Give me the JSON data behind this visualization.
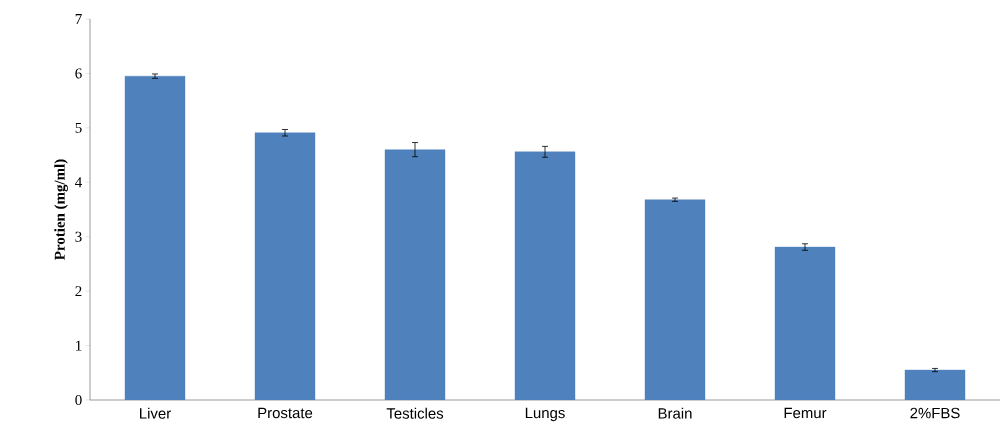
{
  "chart_data": {
    "type": "bar",
    "ylabel": "Protien (mg/ml)",
    "categories": [
      "Liver",
      "Prostate",
      "Testicles",
      "Lungs",
      "Brain",
      "Femur",
      "2%FBS"
    ],
    "values": [
      5.95,
      4.91,
      4.6,
      4.56,
      3.68,
      2.81,
      0.55
    ],
    "errors": [
      0.04,
      0.06,
      0.13,
      0.1,
      0.03,
      0.06,
      0.03
    ],
    "color": "#4f81bd",
    "ylim": [
      0,
      7
    ],
    "yticks": [
      0,
      1,
      2,
      3,
      4,
      5,
      6,
      7
    ],
    "grid": false
  }
}
